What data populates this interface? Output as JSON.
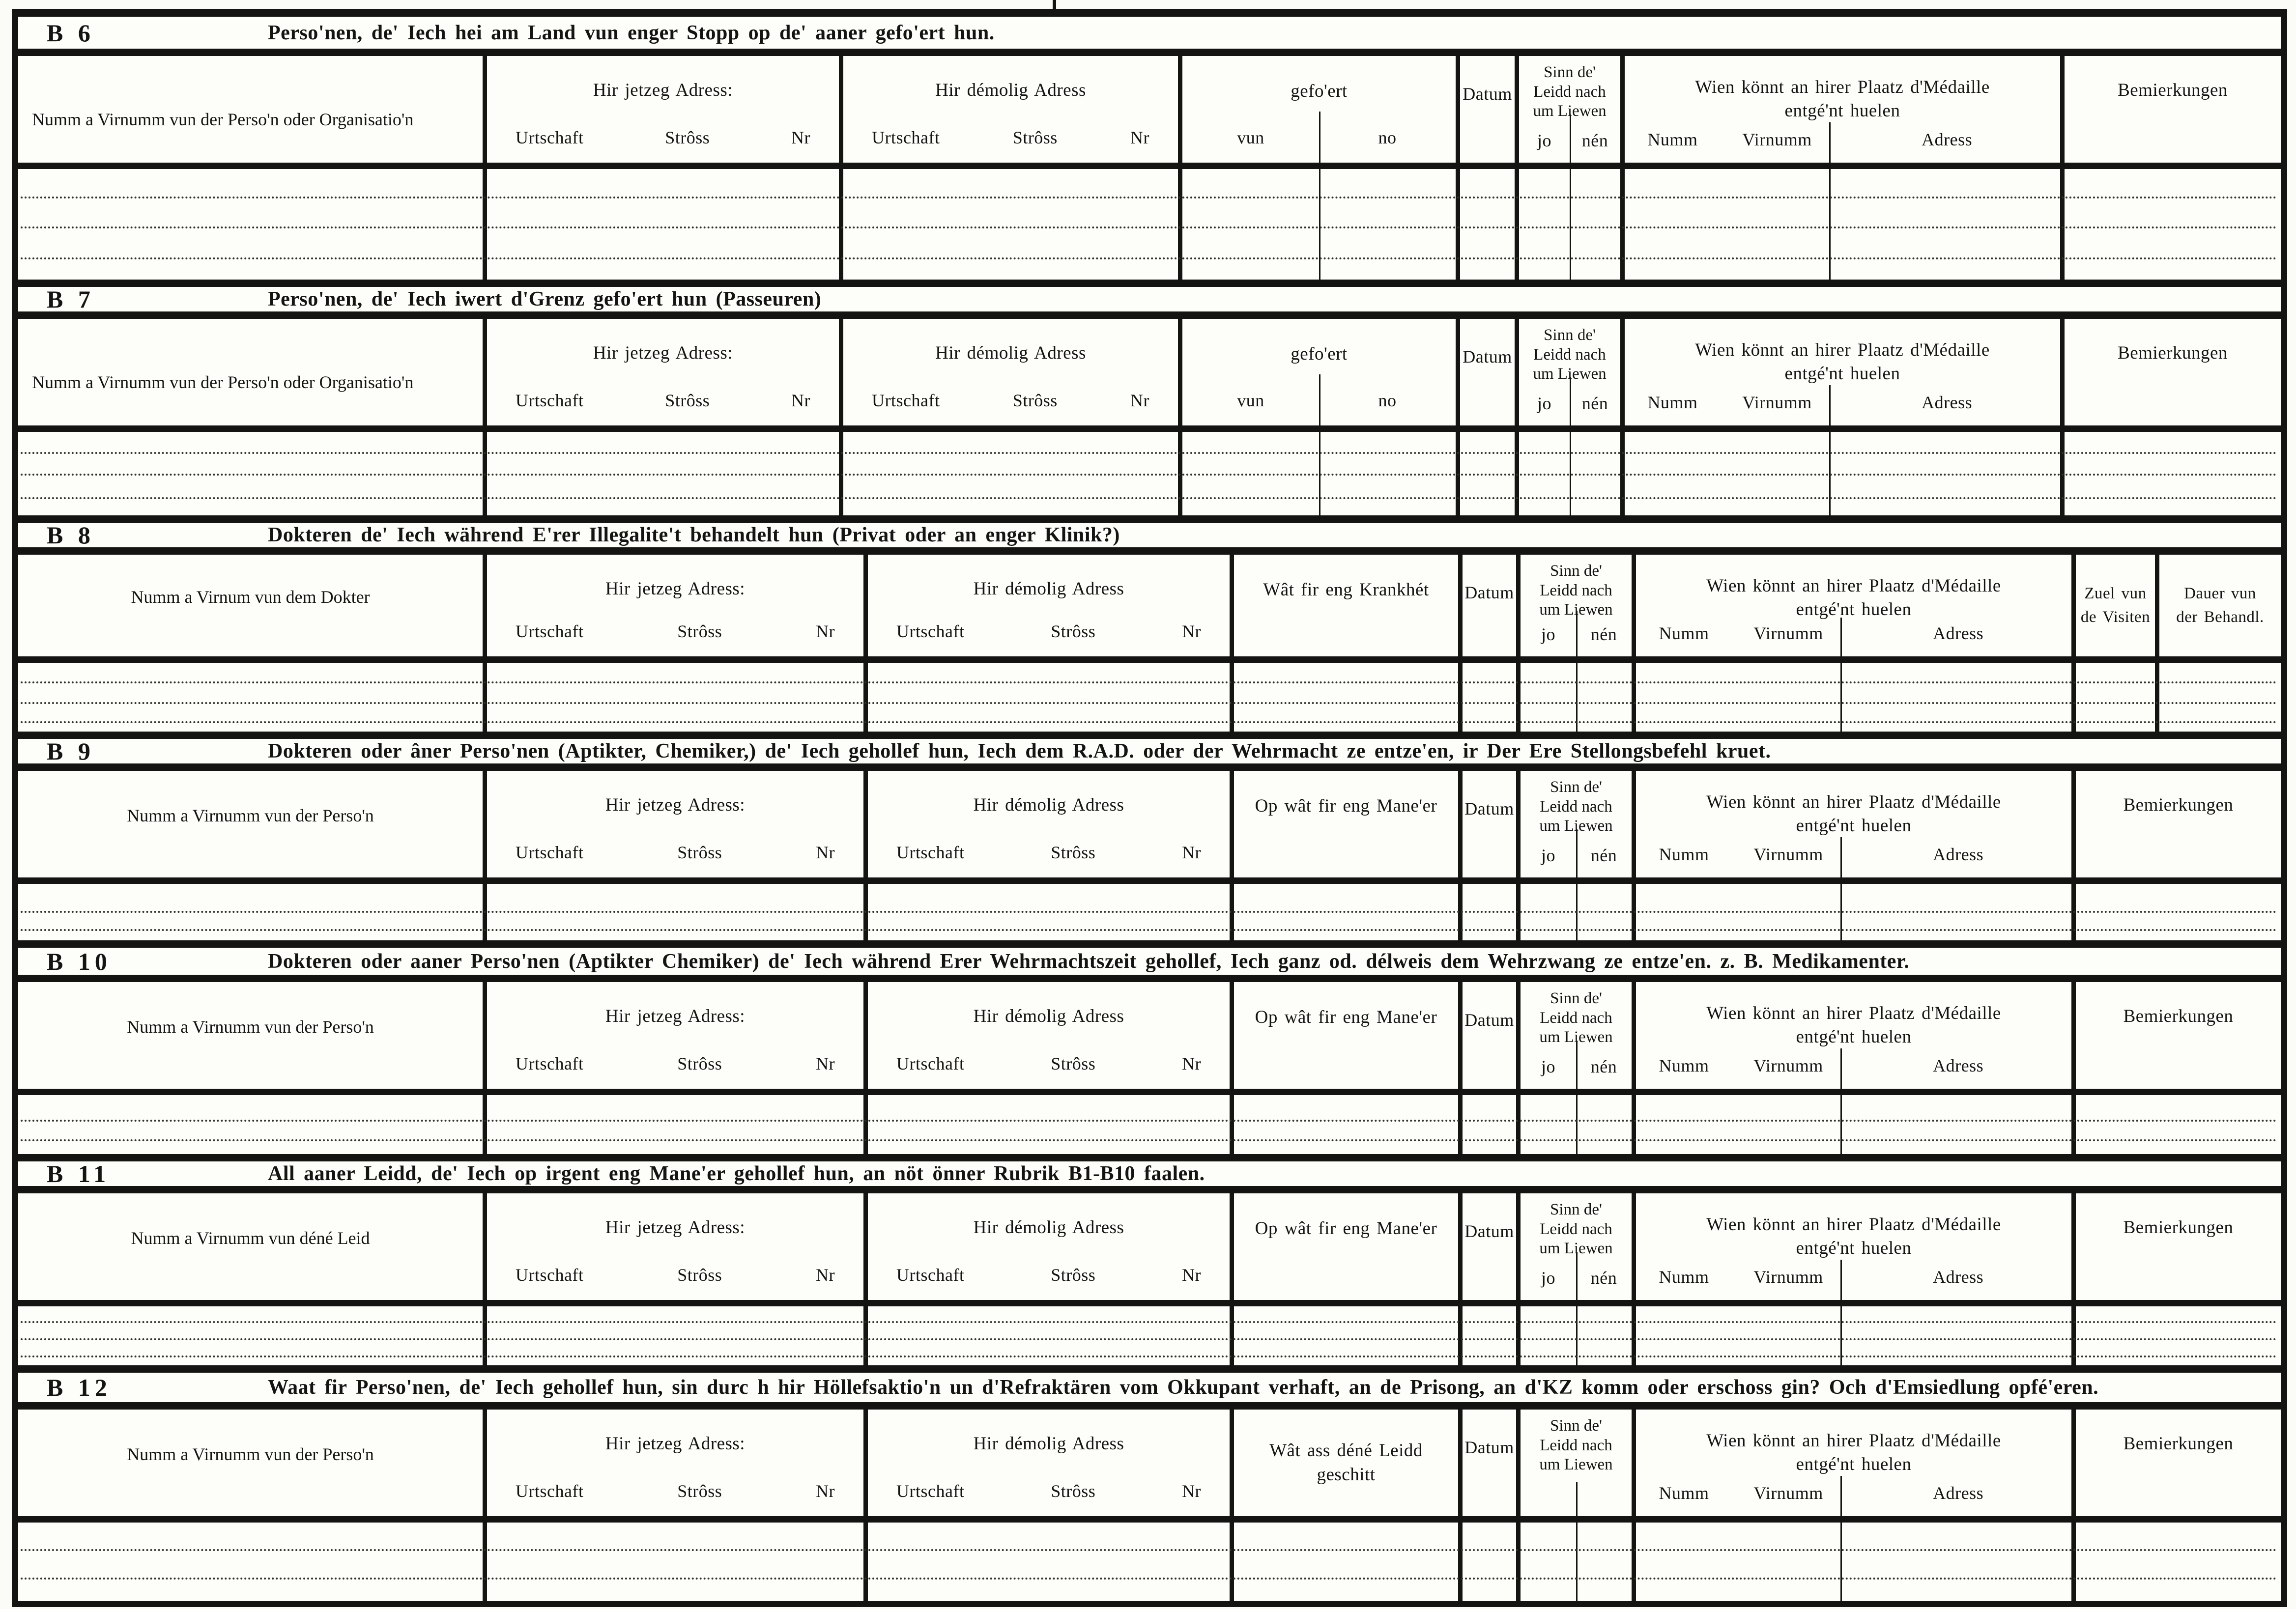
{
  "labels": {
    "hir_jetzeg": "Hir jetzeg Adress:",
    "hir_demolig": "Hir démolig Adress",
    "urtschaft": "Urtschaft",
    "stross": "Strôss",
    "nr": "Nr",
    "gefoert": "gefo'ert",
    "vun": "vun",
    "no": "no",
    "datum": "Datum",
    "sinn_l1": "Sinn de'",
    "sinn_l2": "Leidd nach",
    "sinn_l3": "um Liewen",
    "jo": "jo",
    "nen": "nén",
    "wien_l1": "Wien könnt an hirer Plaatz d'Médaille",
    "wien_l2": "entgé'nt huelen",
    "numm": "Numm",
    "virnumm": "Virnumm",
    "adress": "Adress",
    "bemierkungen": "Bemierkungen",
    "zuel_l1": "Zuel vun",
    "zuel_l2": "de Visiten",
    "dauer_l1": "Dauer vun",
    "dauer_l2": "der Behandl."
  },
  "sections": [
    {
      "id": "B 6",
      "title": "Perso'nen, de' Iech hei am Land vun enger Stopp op de' aaner gefo'ert hun.",
      "col1": "Numm a Virnumm vun der Perso'n oder Organisatio'n"
    },
    {
      "id": "B 7",
      "title": "Perso'nen, de' Iech iwert d'Grenz gefo'ert hun (Passeuren)",
      "col1": "Numm a Virnumm vun der Perso'n oder Organisatio'n"
    },
    {
      "id": "B 8",
      "title": "Dokteren de' Iech während E'rer Illegalite't behandelt hun (Privat oder an enger Klinik?)",
      "col1": "Numm a Virnum vun dem Dokter",
      "mid_label": "Wât fir eng Krankhét"
    },
    {
      "id": "B 9",
      "title": "Dokteren oder âner Perso'nen (Aptikter, Chemiker,) de' Iech gehollef hun, Iech dem R.A.D. oder der Wehrmacht ze entze'en, ir Der Ere Stellongsbefehl kruet.",
      "col1": "Numm a Virnumm vun der Perso'n",
      "mid_label": "Op wât fir eng Mane'er"
    },
    {
      "id": "B 10",
      "title": "Dokteren oder aaner Perso'nen (Aptikter Chemiker) de' Iech während Erer Wehrmachtszeit gehollef, Iech ganz od. délweis dem Wehrzwang ze entze'en. z. B. Medikamenter.",
      "col1": "Numm a Virnumm vun der Perso'n",
      "mid_label": "Op wât fir eng Mane'er"
    },
    {
      "id": "B 11",
      "title": "All aaner Leidd, de' Iech op irgent eng Mane'er gehollef hun, an nöt önner Rubrik B1-B10 faalen.",
      "col1": "Numm a Virnumm vun déné Leid",
      "mid_label": "Op wât fir eng Mane'er"
    },
    {
      "id": "B 12",
      "title": "Waat fir Perso'nen, de' Iech gehollef hun, sin durc h hir Höllefsaktio'n un d'Refraktären vom Okkupant verhaft, an de Prisong, an d'KZ komm oder erschoss gin? Och d'Emsiedlung opfé'eren.",
      "col1": "Numm a Virnumm vun der Perso'n",
      "mid_l1": "Wât ass déné Leidd",
      "mid_l2": "geschitt"
    }
  ]
}
